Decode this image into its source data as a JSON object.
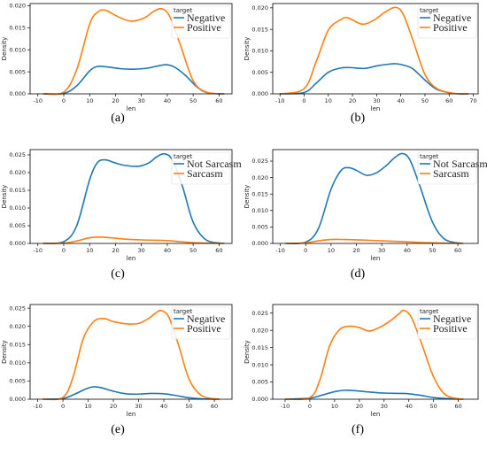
{
  "chart_data": [
    {
      "type": "line",
      "caption": "(a)",
      "xlabel": "len",
      "ylabel": "Density",
      "xlim": [
        -13,
        65
      ],
      "ylim": [
        0,
        0.0205
      ],
      "xticks": [
        -10,
        0,
        10,
        20,
        30,
        40,
        50,
        60
      ],
      "yticks": [
        0.0,
        0.005,
        0.01,
        0.015,
        0.02
      ],
      "yticklabels": [
        "0.000",
        "0.005",
        "0.010",
        "0.015",
        "0.020"
      ],
      "legend": {
        "title": "target",
        "position": "top-right"
      },
      "series": [
        {
          "name": "Negative",
          "color": "#1f77b4",
          "x": [
            -8,
            0,
            5,
            10,
            13,
            17,
            22,
            27,
            32,
            37,
            40,
            43,
            47,
            52,
            56,
            62
          ],
          "y": [
            0,
            0.0001,
            0.0018,
            0.0052,
            0.0062,
            0.0061,
            0.0057,
            0.0056,
            0.0058,
            0.0064,
            0.0066,
            0.006,
            0.0042,
            0.0013,
            0.0002,
            0
          ]
        },
        {
          "name": "Positive",
          "color": "#ff7f0e",
          "x": [
            -8,
            0,
            5,
            10,
            13,
            16,
            21,
            26,
            31,
            35,
            38,
            41,
            45,
            50,
            55,
            62
          ],
          "y": [
            0,
            0.0004,
            0.0055,
            0.0158,
            0.0185,
            0.019,
            0.0175,
            0.0165,
            0.0172,
            0.0188,
            0.0193,
            0.0175,
            0.0112,
            0.003,
            0.0004,
            0
          ]
        }
      ]
    },
    {
      "type": "line",
      "caption": "(b)",
      "xlabel": "len",
      "ylabel": "Density",
      "xlim": [
        -13,
        72
      ],
      "ylim": [
        0,
        0.021
      ],
      "xticks": [
        -10,
        0,
        10,
        20,
        30,
        40,
        50,
        60,
        70
      ],
      "yticks": [
        0.0,
        0.005,
        0.01,
        0.015,
        0.02
      ],
      "yticklabels": [
        "0.000",
        "0.005",
        "0.010",
        "0.015",
        "0.020"
      ],
      "legend": {
        "title": "target",
        "position": "top-right"
      },
      "series": [
        {
          "name": "Negative",
          "color": "#1f77b4",
          "x": [
            -10,
            0,
            5,
            10,
            15,
            19,
            25,
            30,
            35,
            38,
            41,
            45,
            50,
            55,
            62,
            68
          ],
          "y": [
            0,
            0.0003,
            0.0025,
            0.005,
            0.006,
            0.0061,
            0.0059,
            0.0065,
            0.0069,
            0.007,
            0.0067,
            0.0058,
            0.0032,
            0.001,
            0.0001,
            0
          ]
        },
        {
          "name": "Positive",
          "color": "#ff7f0e",
          "x": [
            -10,
            0,
            5,
            10,
            15,
            18,
            24,
            29,
            34,
            38,
            41,
            45,
            50,
            55,
            62,
            68
          ],
          "y": [
            0,
            0.0012,
            0.0075,
            0.0148,
            0.0172,
            0.0177,
            0.0162,
            0.0172,
            0.0192,
            0.0201,
            0.0185,
            0.0125,
            0.0045,
            0.0012,
            0.0001,
            0
          ]
        }
      ]
    },
    {
      "type": "line",
      "caption": "(c)",
      "xlabel": "len",
      "ylabel": "Density",
      "xlim": [
        -13,
        65
      ],
      "ylim": [
        0,
        0.0265
      ],
      "xticks": [
        -10,
        0,
        10,
        20,
        30,
        40,
        50,
        60
      ],
      "yticks": [
        0.0,
        0.005,
        0.01,
        0.015,
        0.02,
        0.025
      ],
      "yticklabels": [
        "0.000",
        "0.005",
        "0.010",
        "0.015",
        "0.020",
        "0.025"
      ],
      "legend": {
        "title": "target",
        "position": "top-right"
      },
      "series": [
        {
          "name": "Not Sarcasm",
          "color": "#1f77b4",
          "x": [
            -8,
            0,
            5,
            10,
            13,
            16,
            20,
            24,
            29,
            33,
            36,
            39,
            42,
            46,
            50,
            55,
            62
          ],
          "y": [
            0,
            0.0005,
            0.005,
            0.018,
            0.0228,
            0.0236,
            0.0227,
            0.022,
            0.0218,
            0.0228,
            0.0245,
            0.0253,
            0.0235,
            0.0158,
            0.006,
            0.001,
            0
          ]
        },
        {
          "name": "Sarcasm",
          "color": "#ff7f0e",
          "x": [
            -8,
            0,
            5,
            10,
            14,
            18,
            24,
            30,
            36,
            40,
            45,
            50,
            55,
            62
          ],
          "y": [
            0,
            0.0001,
            0.0007,
            0.0016,
            0.0018,
            0.0016,
            0.0012,
            0.001,
            0.0009,
            0.0008,
            0.0005,
            0.0002,
            0.0001,
            0
          ]
        }
      ]
    },
    {
      "type": "line",
      "caption": "(d)",
      "xlabel": "len",
      "ylabel": "Density",
      "xlim": [
        -13,
        68
      ],
      "ylim": [
        0,
        0.0285
      ],
      "xticks": [
        -10,
        0,
        10,
        20,
        30,
        40,
        50,
        60
      ],
      "yticks": [
        0.0,
        0.005,
        0.01,
        0.015,
        0.02,
        0.025
      ],
      "yticklabels": [
        "0.000",
        "0.005",
        "0.010",
        "0.015",
        "0.020",
        "0.025"
      ],
      "legend": {
        "title": "target",
        "position": "top-right"
      },
      "series": [
        {
          "name": "Not Sarcasm",
          "color": "#1f77b4",
          "x": [
            -8,
            0,
            5,
            10,
            14,
            17,
            20,
            24,
            28,
            32,
            35,
            38,
            41,
            45,
            50,
            55,
            62
          ],
          "y": [
            0,
            0.0004,
            0.0045,
            0.0165,
            0.0222,
            0.023,
            0.0222,
            0.0207,
            0.0215,
            0.0238,
            0.026,
            0.0273,
            0.0255,
            0.0175,
            0.0065,
            0.0012,
            0
          ]
        },
        {
          "name": "Sarcasm",
          "color": "#ff7f0e",
          "x": [
            -8,
            0,
            5,
            10,
            15,
            20,
            30,
            40,
            45,
            50,
            55,
            62
          ],
          "y": [
            0,
            0.0002,
            0.0008,
            0.0012,
            0.0012,
            0.0011,
            0.0008,
            0.0005,
            0.0003,
            0.0002,
            0.0001,
            0
          ]
        }
      ]
    },
    {
      "type": "line",
      "caption": "(e)",
      "xlabel": "len",
      "ylabel": "Density",
      "xlim": [
        -13,
        67
      ],
      "ylim": [
        0,
        0.026
      ],
      "xticks": [
        -10,
        0,
        10,
        20,
        30,
        40,
        50,
        60
      ],
      "yticks": [
        0.0,
        0.005,
        0.01,
        0.015,
        0.02,
        0.025
      ],
      "yticklabels": [
        "0.000",
        "0.005",
        "0.010",
        "0.015",
        "0.020",
        "0.025"
      ],
      "legend": {
        "title": "target",
        "position": "top-right"
      },
      "series": [
        {
          "name": "Negative",
          "color": "#1f77b4",
          "x": [
            -8,
            0,
            5,
            9,
            12,
            15,
            20,
            25,
            30,
            35,
            40,
            45,
            50,
            55,
            62
          ],
          "y": [
            0,
            0.0002,
            0.0015,
            0.0028,
            0.0034,
            0.0032,
            0.0022,
            0.0015,
            0.0014,
            0.0016,
            0.0015,
            0.001,
            0.0004,
            0.0001,
            0
          ]
        },
        {
          "name": "Positive",
          "color": "#ff7f0e",
          "x": [
            -8,
            0,
            4,
            8,
            12,
            16,
            20,
            25,
            30,
            34,
            37,
            39,
            42,
            46,
            50,
            55,
            62
          ],
          "y": [
            0,
            0.0005,
            0.006,
            0.0165,
            0.0212,
            0.0222,
            0.0213,
            0.0207,
            0.0208,
            0.0222,
            0.0238,
            0.0243,
            0.0225,
            0.0145,
            0.0055,
            0.001,
            0
          ]
        }
      ]
    },
    {
      "type": "line",
      "caption": "(f)",
      "xlabel": "len",
      "ylabel": "Density",
      "xlim": [
        -15,
        68
      ],
      "ylim": [
        0,
        0.0275
      ],
      "xticks": [
        -10,
        0,
        10,
        20,
        30,
        40,
        50,
        60
      ],
      "yticks": [
        0.0,
        0.005,
        0.01,
        0.015,
        0.02,
        0.025
      ],
      "yticklabels": [
        "0.000",
        "0.005",
        "0.010",
        "0.015",
        "0.020",
        "0.025"
      ],
      "legend": {
        "title": "target",
        "position": "top-right"
      },
      "series": [
        {
          "name": "Negative",
          "color": "#1f77b4",
          "x": [
            -10,
            0,
            5,
            10,
            14,
            18,
            24,
            30,
            36,
            40,
            45,
            50,
            55,
            62
          ],
          "y": [
            0,
            0.0003,
            0.0012,
            0.0022,
            0.0026,
            0.0025,
            0.0021,
            0.0018,
            0.0017,
            0.0016,
            0.0011,
            0.0005,
            0.0002,
            0
          ]
        },
        {
          "name": "Positive",
          "color": "#ff7f0e",
          "x": [
            -10,
            0,
            4,
            8,
            12,
            16,
            20,
            24,
            28,
            32,
            36,
            38,
            41,
            45,
            50,
            55,
            62
          ],
          "y": [
            0,
            0.0005,
            0.0055,
            0.0155,
            0.0202,
            0.0212,
            0.0208,
            0.0198,
            0.0208,
            0.0225,
            0.0248,
            0.0258,
            0.0238,
            0.0165,
            0.0065,
            0.0012,
            0
          ]
        }
      ]
    }
  ]
}
